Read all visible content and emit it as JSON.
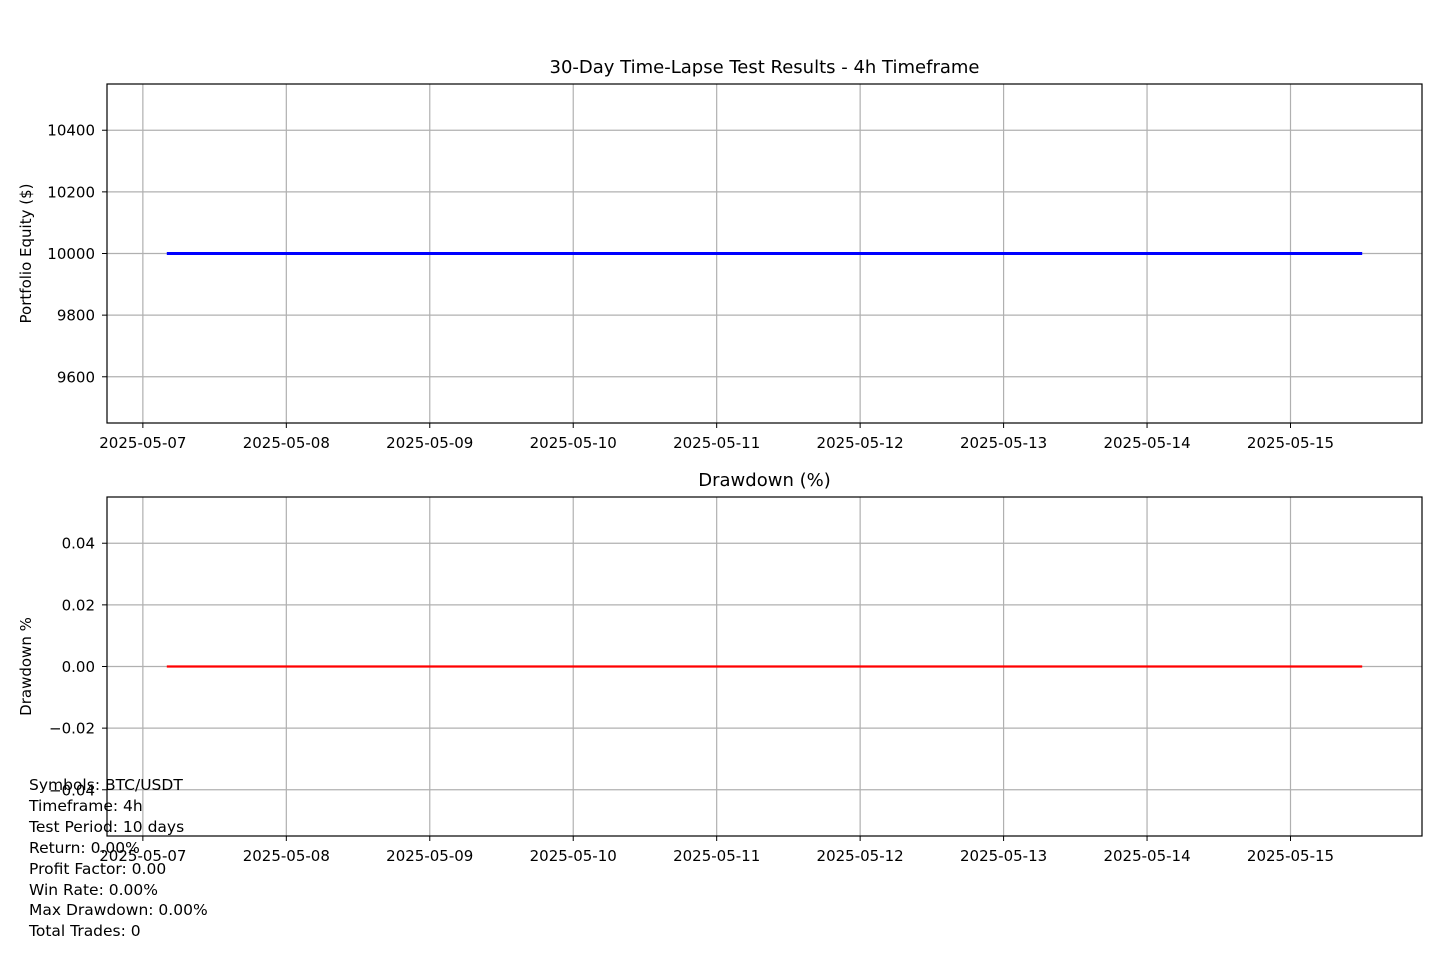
{
  "chart_data": [
    {
      "type": "line",
      "title": "30-Day Time-Lapse Test Results - 4h Timeframe",
      "xlabel": "",
      "ylabel": "Portfolio Equity ($)",
      "x_ticks": [
        "2025-05-07",
        "2025-05-08",
        "2025-05-09",
        "2025-05-10",
        "2025-05-11",
        "2025-05-12",
        "2025-05-13",
        "2025-05-14",
        "2025-05-15"
      ],
      "y_ticks": [
        9600,
        9800,
        10000,
        10200,
        10400
      ],
      "y_tick_labels": [
        "9600",
        "9800",
        "10000",
        "10200",
        "10400"
      ],
      "xlim": [
        "2025-05-06 18:00",
        "2025-05-15 22:00"
      ],
      "ylim": [
        9450,
        10550
      ],
      "grid": true,
      "series": [
        {
          "color": "#0000ff",
          "x": [
            "2025-05-07 04:00",
            "2025-05-15 12:00"
          ],
          "values": [
            10000,
            10000
          ]
        }
      ]
    },
    {
      "type": "line",
      "title": "Drawdown (%)",
      "xlabel": "",
      "ylabel": "Drawdown %",
      "x_ticks": [
        "2025-05-07",
        "2025-05-08",
        "2025-05-09",
        "2025-05-10",
        "2025-05-11",
        "2025-05-12",
        "2025-05-13",
        "2025-05-14",
        "2025-05-15"
      ],
      "y_ticks": [
        -0.04,
        -0.02,
        0.0,
        0.02,
        0.04
      ],
      "y_tick_labels": [
        "−0.04",
        "−0.02",
        "0.00",
        "0.02",
        "0.04"
      ],
      "xlim": [
        "2025-05-06 18:00",
        "2025-05-15 22:00"
      ],
      "ylim": [
        -0.055,
        0.055
      ],
      "grid": true,
      "series": [
        {
          "color": "#ff0000",
          "x": [
            "2025-05-07 04:00",
            "2025-05-15 12:00"
          ],
          "values": [
            0,
            0
          ]
        }
      ]
    }
  ],
  "stats": {
    "symbols": "Symbols: BTC/USDT",
    "timeframe": "Timeframe: 4h",
    "test_period": "Test Period: 10 days",
    "return": "Return: 0.00%",
    "profit_factor": "Profit Factor: 0.00",
    "win_rate": "Win Rate: 0.00%",
    "max_drawdown": "Max Drawdown: 0.00%",
    "total_trades": "Total Trades: 0"
  }
}
